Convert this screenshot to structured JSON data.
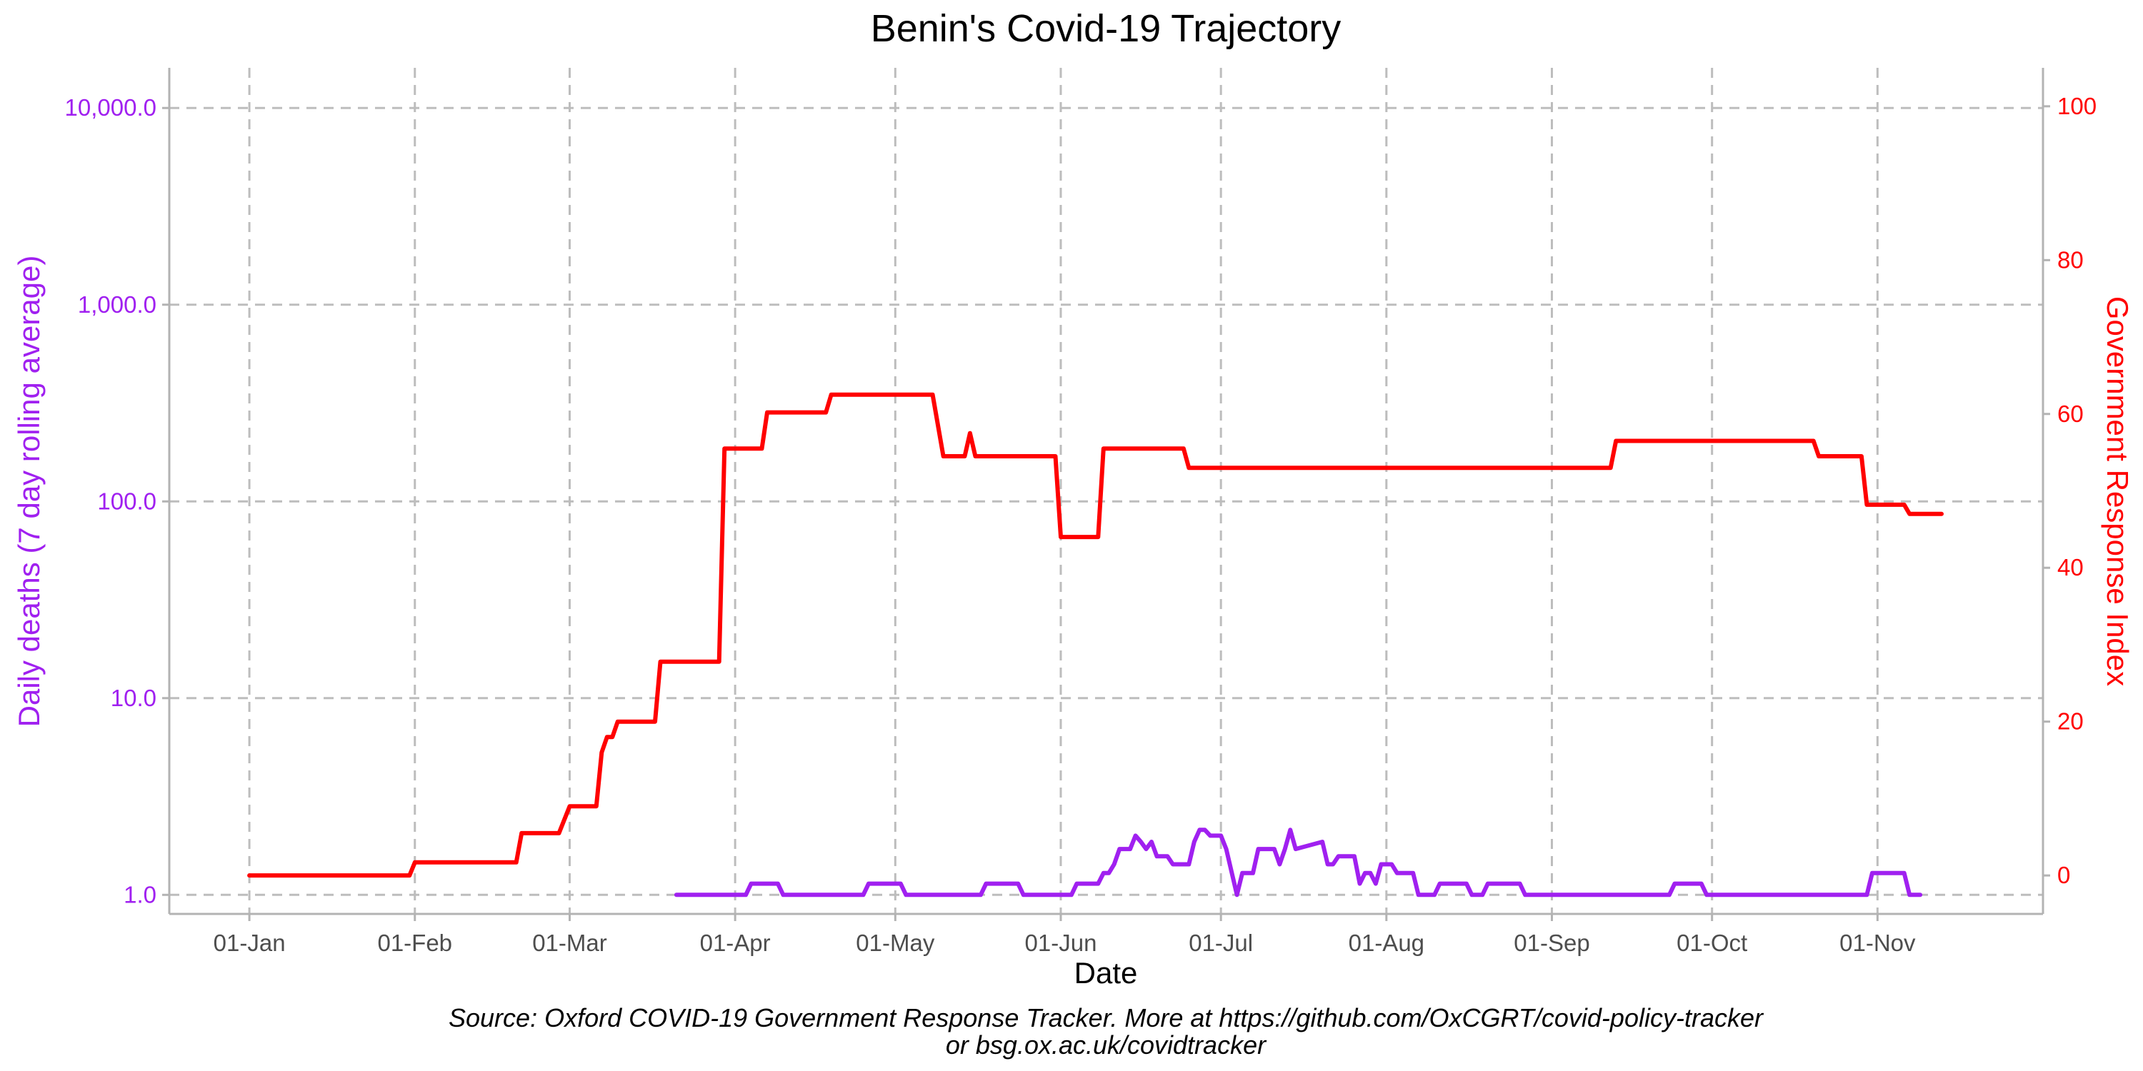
{
  "chart_data": {
    "type": "line",
    "title": "Benin's Covid-19 Trajectory",
    "xlabel": "Date",
    "ylabel_left": "Daily deaths (7 day rolling average)",
    "ylabel_right": "Government Response Index",
    "caption": [
      "Source: Oxford COVID-19 Government Response Tracker. More at https://github.com/OxCGRT/covid-policy-tracker",
      "or bsg.ox.ac.uk/covidtracker"
    ],
    "y_left_scale": "log10",
    "y_left_lim": [
      0.8,
      16000
    ],
    "y_left_ticks": [
      1,
      10,
      100,
      1000,
      10000
    ],
    "y_left_tick_labels": [
      "1.0",
      "10.0",
      "100.0",
      "1,000.0",
      "10,000.0"
    ],
    "y_right_lim": [
      -5,
      105
    ],
    "y_right_ticks": [
      0,
      20,
      40,
      60,
      80,
      100
    ],
    "y_right_tick_labels": [
      "0",
      "20",
      "40",
      "60",
      "80",
      "100"
    ],
    "x_lim": [
      "2019-12-17",
      "2020-12-02"
    ],
    "x_ticks": [
      "2020-01-01",
      "2020-02-01",
      "2020-03-01",
      "2020-04-01",
      "2020-05-01",
      "2020-06-01",
      "2020-07-01",
      "2020-08-01",
      "2020-09-01",
      "2020-10-01",
      "2020-11-01"
    ],
    "x_tick_labels": [
      "01-Jan",
      "01-Feb",
      "01-Mar",
      "01-Apr",
      "01-May",
      "01-Jun",
      "01-Jul",
      "01-Aug",
      "01-Sep",
      "01-Oct",
      "01-Nov"
    ],
    "grid": true,
    "colors": {
      "deaths": "#a020f0",
      "response": "#ff0000"
    },
    "series": [
      {
        "axis": "right",
        "color": "#ff0000",
        "points": [
          [
            "2020-01-01",
            0
          ],
          [
            "2020-01-31",
            0
          ],
          [
            "2020-02-01",
            1.7
          ],
          [
            "2020-02-20",
            1.7
          ],
          [
            "2020-02-21",
            5.5
          ],
          [
            "2020-02-28",
            5.5
          ],
          [
            "2020-03-01",
            9
          ],
          [
            "2020-03-06",
            9
          ],
          [
            "2020-03-07",
            16
          ],
          [
            "2020-03-08",
            18
          ],
          [
            "2020-03-09",
            18
          ],
          [
            "2020-03-10",
            20
          ],
          [
            "2020-03-17",
            20
          ],
          [
            "2020-03-18",
            27.8
          ],
          [
            "2020-03-29",
            27.8
          ],
          [
            "2020-03-30",
            55.5
          ],
          [
            "2020-04-06",
            55.5
          ],
          [
            "2020-04-07",
            60.2
          ],
          [
            "2020-04-18",
            60.2
          ],
          [
            "2020-04-19",
            62.5
          ],
          [
            "2020-05-08",
            62.5
          ],
          [
            "2020-05-10",
            54.5
          ],
          [
            "2020-05-14",
            54.5
          ],
          [
            "2020-05-15",
            57.5
          ],
          [
            "2020-05-16",
            54.5
          ],
          [
            "2020-05-31",
            54.5
          ],
          [
            "2020-06-01",
            44
          ],
          [
            "2020-06-08",
            44
          ],
          [
            "2020-06-09",
            55.5
          ],
          [
            "2020-06-24",
            55.5
          ],
          [
            "2020-06-25",
            53
          ],
          [
            "2020-09-12",
            53
          ],
          [
            "2020-09-13",
            56.5
          ],
          [
            "2020-10-20",
            56.5
          ],
          [
            "2020-10-21",
            54.5
          ],
          [
            "2020-10-29",
            54.5
          ],
          [
            "2020-10-30",
            48.2
          ],
          [
            "2020-11-06",
            48.2
          ],
          [
            "2020-11-07",
            47
          ],
          [
            "2020-11-13",
            47
          ]
        ]
      },
      {
        "axis": "left",
        "color": "#a020f0",
        "points": [
          [
            "2020-03-21",
            1
          ],
          [
            "2020-04-03",
            1
          ],
          [
            "2020-04-04",
            1.14
          ],
          [
            "2020-04-09",
            1.14
          ],
          [
            "2020-04-10",
            1
          ],
          [
            "2020-04-25",
            1
          ],
          [
            "2020-04-26",
            1.14
          ],
          [
            "2020-05-02",
            1.14
          ],
          [
            "2020-05-03",
            1
          ],
          [
            "2020-05-17",
            1
          ],
          [
            "2020-05-18",
            1.14
          ],
          [
            "2020-05-24",
            1.14
          ],
          [
            "2020-05-25",
            1
          ],
          [
            "2020-06-03",
            1
          ],
          [
            "2020-06-04",
            1.14
          ],
          [
            "2020-06-08",
            1.14
          ],
          [
            "2020-06-09",
            1.29
          ],
          [
            "2020-06-10",
            1.29
          ],
          [
            "2020-06-11",
            1.43
          ],
          [
            "2020-06-12",
            1.71
          ],
          [
            "2020-06-14",
            1.71
          ],
          [
            "2020-06-15",
            2
          ],
          [
            "2020-06-16",
            1.86
          ],
          [
            "2020-06-17",
            1.71
          ],
          [
            "2020-06-18",
            1.86
          ],
          [
            "2020-06-19",
            1.57
          ],
          [
            "2020-06-21",
            1.57
          ],
          [
            "2020-06-22",
            1.43
          ],
          [
            "2020-06-25",
            1.43
          ],
          [
            "2020-06-26",
            1.86
          ],
          [
            "2020-06-27",
            2.14
          ],
          [
            "2020-06-28",
            2.14
          ],
          [
            "2020-06-29",
            2
          ],
          [
            "2020-07-01",
            2
          ],
          [
            "2020-07-02",
            1.71
          ],
          [
            "2020-07-04",
            1
          ],
          [
            "2020-07-05",
            1.29
          ],
          [
            "2020-07-07",
            1.29
          ],
          [
            "2020-07-08",
            1.71
          ],
          [
            "2020-07-11",
            1.71
          ],
          [
            "2020-07-12",
            1.43
          ],
          [
            "2020-07-13",
            1.71
          ],
          [
            "2020-07-14",
            2.14
          ],
          [
            "2020-07-15",
            1.71
          ],
          [
            "2020-07-20",
            1.86
          ],
          [
            "2020-07-21",
            1.43
          ],
          [
            "2020-07-22",
            1.43
          ],
          [
            "2020-07-23",
            1.57
          ],
          [
            "2020-07-26",
            1.57
          ],
          [
            "2020-07-27",
            1.14
          ],
          [
            "2020-07-28",
            1.29
          ],
          [
            "2020-07-29",
            1.29
          ],
          [
            "2020-07-30",
            1.14
          ],
          [
            "2020-07-31",
            1.43
          ],
          [
            "2020-08-02",
            1.43
          ],
          [
            "2020-08-03",
            1.29
          ],
          [
            "2020-08-06",
            1.29
          ],
          [
            "2020-08-07",
            1
          ],
          [
            "2020-08-10",
            1
          ],
          [
            "2020-08-11",
            1.14
          ],
          [
            "2020-08-16",
            1.14
          ],
          [
            "2020-08-17",
            1
          ],
          [
            "2020-08-19",
            1
          ],
          [
            "2020-08-20",
            1.14
          ],
          [
            "2020-08-26",
            1.14
          ],
          [
            "2020-08-27",
            1
          ],
          [
            "2020-09-23",
            1
          ],
          [
            "2020-09-24",
            1.14
          ],
          [
            "2020-09-29",
            1.14
          ],
          [
            "2020-09-30",
            1
          ],
          [
            "2020-10-30",
            1
          ],
          [
            "2020-10-31",
            1.29
          ],
          [
            "2020-11-06",
            1.29
          ],
          [
            "2020-11-07",
            1
          ],
          [
            "2020-11-09",
            1
          ]
        ]
      }
    ]
  }
}
